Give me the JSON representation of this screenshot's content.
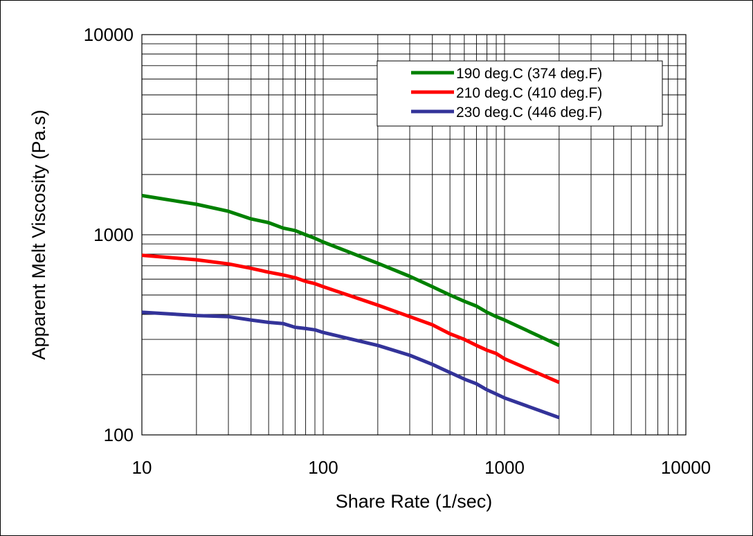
{
  "chart_data": {
    "type": "line",
    "xlabel": "Share Rate (1/sec)",
    "ylabel": "Apparent Melt Viscosity (Pa.s)",
    "xscale": "log",
    "yscale": "log",
    "xlim": [
      10,
      10000
    ],
    "ylim": [
      100,
      10000
    ],
    "x_ticks": [
      "10",
      "100",
      "1000",
      "10000"
    ],
    "y_ticks": [
      "10000",
      "1000",
      "100"
    ],
    "grid": true,
    "legend_position": "top-right",
    "series": [
      {
        "name": "190 deg.C (374 deg.F)",
        "color": "#008000",
        "x": [
          10,
          20,
          30,
          40,
          50,
          60,
          70,
          80,
          90,
          100,
          200,
          300,
          400,
          500,
          600,
          700,
          800,
          900,
          1000,
          2000
        ],
        "y": [
          1570,
          1420,
          1310,
          1200,
          1150,
          1080,
          1050,
          1000,
          960,
          920,
          720,
          620,
          550,
          500,
          465,
          440,
          410,
          390,
          375,
          280
        ]
      },
      {
        "name": "210 deg.C (410 deg.F)",
        "color": "#ff0000",
        "x": [
          10,
          20,
          30,
          40,
          50,
          60,
          70,
          80,
          90,
          100,
          200,
          300,
          400,
          500,
          600,
          700,
          800,
          900,
          1000,
          2000
        ],
        "y": [
          790,
          750,
          715,
          680,
          650,
          630,
          610,
          585,
          570,
          550,
          445,
          390,
          355,
          320,
          300,
          280,
          265,
          255,
          240,
          183
        ]
      },
      {
        "name": "230 deg.C (446 deg.F)",
        "color": "#333399",
        "x": [
          10,
          20,
          30,
          40,
          50,
          60,
          70,
          80,
          90,
          100,
          200,
          300,
          400,
          500,
          600,
          700,
          800,
          900,
          1000,
          2000
        ],
        "y": [
          410,
          395,
          390,
          375,
          365,
          360,
          345,
          340,
          335,
          325,
          280,
          250,
          225,
          205,
          190,
          180,
          168,
          160,
          153,
          122
        ]
      }
    ]
  }
}
